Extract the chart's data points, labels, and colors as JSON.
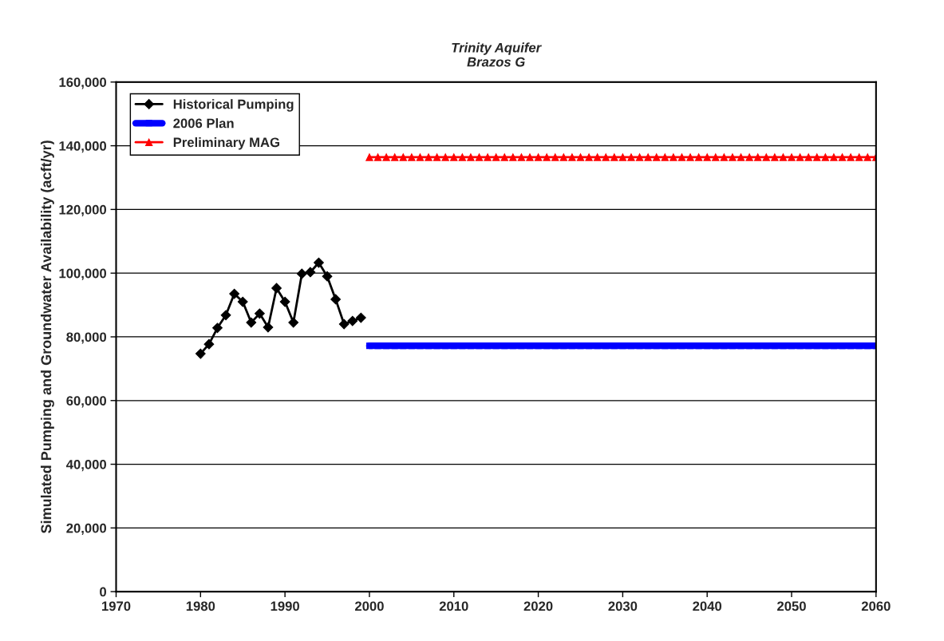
{
  "chart_data": {
    "type": "line",
    "title": "Trinity Aquifer\nBrazos G",
    "ylabel": "Simulated Pumping and Groundwater Availability (acft/yr)",
    "xlim": [
      1970,
      2060
    ],
    "xticks": [
      1970,
      1980,
      1990,
      2000,
      2010,
      2020,
      2030,
      2040,
      2050,
      2060
    ],
    "ylim": [
      0,
      160000
    ],
    "yticks": [
      {
        "value": 0,
        "label": "0"
      },
      {
        "value": 20000,
        "label": "20,000"
      },
      {
        "value": 40000,
        "label": "40,000"
      },
      {
        "value": 60000,
        "label": "60,000"
      },
      {
        "value": 80000,
        "label": "80,000"
      },
      {
        "value": 100000,
        "label": "100,000"
      },
      {
        "value": 120000,
        "label": "120,000"
      },
      {
        "value": 140000,
        "label": "140,000"
      },
      {
        "value": 160000,
        "label": "160,000"
      }
    ],
    "grid": "y",
    "legend": "top left",
    "series": [
      {
        "name": "Historical Pumping",
        "color": "#000000",
        "marker": "diamond",
        "x": [
          1980,
          1981,
          1982,
          1983,
          1984,
          1985,
          1986,
          1987,
          1988,
          1989,
          1990,
          1991,
          1992,
          1993,
          1994,
          1995,
          1996,
          1997,
          1998,
          1999
        ],
        "values": [
          74700,
          77700,
          82800,
          86800,
          93500,
          91000,
          84500,
          87300,
          83000,
          95300,
          91000,
          84500,
          99800,
          100300,
          103300,
          99000,
          91800,
          84000,
          85000,
          86000
        ]
      },
      {
        "name": "2006 Plan",
        "color": "#0000ff",
        "marker": "square",
        "x": [
          2000,
          2001,
          2002,
          2003,
          2004,
          2005,
          2006,
          2007,
          2008,
          2009,
          2010,
          2011,
          2012,
          2013,
          2014,
          2015,
          2016,
          2017,
          2018,
          2019,
          2020,
          2021,
          2022,
          2023,
          2024,
          2025,
          2026,
          2027,
          2028,
          2029,
          2030,
          2031,
          2032,
          2033,
          2034,
          2035,
          2036,
          2037,
          2038,
          2039,
          2040,
          2041,
          2042,
          2043,
          2044,
          2045,
          2046,
          2047,
          2048,
          2049,
          2050,
          2051,
          2052,
          2053,
          2054,
          2055,
          2056,
          2057,
          2058,
          2059,
          2060
        ],
        "values": [
          77200,
          77200,
          77200,
          77200,
          77200,
          77200,
          77200,
          77200,
          77200,
          77200,
          77200,
          77200,
          77200,
          77200,
          77200,
          77200,
          77200,
          77200,
          77200,
          77200,
          77200,
          77200,
          77200,
          77200,
          77200,
          77200,
          77200,
          77200,
          77200,
          77200,
          77200,
          77200,
          77200,
          77200,
          77200,
          77200,
          77200,
          77200,
          77200,
          77200,
          77200,
          77200,
          77200,
          77200,
          77200,
          77200,
          77200,
          77200,
          77200,
          77200,
          77200,
          77200,
          77200,
          77200,
          77200,
          77200,
          77200,
          77200,
          77200,
          77200,
          77200
        ]
      },
      {
        "name": "Preliminary MAG",
        "color": "#ff0000",
        "marker": "triangle",
        "x": [
          2000,
          2001,
          2002,
          2003,
          2004,
          2005,
          2006,
          2007,
          2008,
          2009,
          2010,
          2011,
          2012,
          2013,
          2014,
          2015,
          2016,
          2017,
          2018,
          2019,
          2020,
          2021,
          2022,
          2023,
          2024,
          2025,
          2026,
          2027,
          2028,
          2029,
          2030,
          2031,
          2032,
          2033,
          2034,
          2035,
          2036,
          2037,
          2038,
          2039,
          2040,
          2041,
          2042,
          2043,
          2044,
          2045,
          2046,
          2047,
          2048,
          2049,
          2050,
          2051,
          2052,
          2053,
          2054,
          2055,
          2056,
          2057,
          2058,
          2059,
          2060
        ],
        "values": [
          136400,
          136400,
          136400,
          136400,
          136400,
          136400,
          136400,
          136400,
          136400,
          136400,
          136400,
          136400,
          136400,
          136400,
          136400,
          136400,
          136400,
          136400,
          136400,
          136400,
          136400,
          136400,
          136400,
          136400,
          136400,
          136400,
          136400,
          136400,
          136400,
          136400,
          136400,
          136400,
          136400,
          136400,
          136400,
          136400,
          136400,
          136400,
          136400,
          136400,
          136400,
          136400,
          136400,
          136400,
          136400,
          136400,
          136400,
          136400,
          136400,
          136400,
          136400,
          136400,
          136400,
          136400,
          136400,
          136400,
          136400,
          136400,
          136400,
          136400,
          136400
        ]
      }
    ]
  }
}
